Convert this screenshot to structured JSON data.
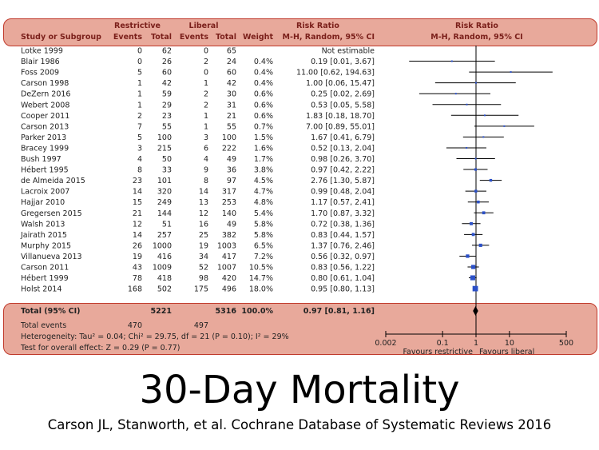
{
  "header": {
    "group1": "Restrictive",
    "group2": "Liberal",
    "rr_title": "Risk Ratio",
    "plot_title": "Risk Ratio",
    "study_col": "Study or Subgroup",
    "events1": "Events",
    "total1": "Total",
    "events2": "Events",
    "total2": "Total",
    "weight": "Weight",
    "rr_method": "M-H, Random, 95% CI",
    "plot_method": "M-H, Random, 95% CI"
  },
  "chart_data": {
    "type": "forest",
    "xscale": "log",
    "xlim": [
      0.002,
      500
    ],
    "ticks": [
      "0.002",
      "0.1",
      "1",
      "10",
      "500"
    ],
    "left_label": "Favours restrictive",
    "right_label": "Favours liberal",
    "studies": [
      {
        "name": "Lotke 1999",
        "e1": "0",
        "t1": "62",
        "e2": "0",
        "t2": "65",
        "weight": "",
        "rr_text": "Not estimable",
        "rr": null,
        "lo": null,
        "hi": null
      },
      {
        "name": "Blair 1986",
        "e1": "0",
        "t1": "26",
        "e2": "2",
        "t2": "24",
        "weight": "0.4%",
        "rr_text": "0.19 [0.01, 3.67]",
        "rr": 0.19,
        "lo": 0.01,
        "hi": 3.67
      },
      {
        "name": "Foss 2009",
        "e1": "5",
        "t1": "60",
        "e2": "0",
        "t2": "60",
        "weight": "0.4%",
        "rr_text": "11.00 [0.62, 194.63]",
        "rr": 11.0,
        "lo": 0.62,
        "hi": 194.63
      },
      {
        "name": "Carson 1998",
        "e1": "1",
        "t1": "42",
        "e2": "1",
        "t2": "42",
        "weight": "0.4%",
        "rr_text": "1.00 [0.06, 15.47]",
        "rr": 1.0,
        "lo": 0.06,
        "hi": 15.47
      },
      {
        "name": "DeZern 2016",
        "e1": "1",
        "t1": "59",
        "e2": "2",
        "t2": "30",
        "weight": "0.6%",
        "rr_text": "0.25 [0.02, 2.69]",
        "rr": 0.25,
        "lo": 0.02,
        "hi": 2.69
      },
      {
        "name": "Webert 2008",
        "e1": "1",
        "t1": "29",
        "e2": "2",
        "t2": "31",
        "weight": "0.6%",
        "rr_text": "0.53 [0.05, 5.58]",
        "rr": 0.53,
        "lo": 0.05,
        "hi": 5.58
      },
      {
        "name": "Cooper  2011",
        "e1": "2",
        "t1": "23",
        "e2": "1",
        "t2": "21",
        "weight": "0.6%",
        "rr_text": "1.83 [0.18, 18.70]",
        "rr": 1.83,
        "lo": 0.18,
        "hi": 18.7
      },
      {
        "name": "Carson 2013",
        "e1": "7",
        "t1": "55",
        "e2": "1",
        "t2": "55",
        "weight": "0.7%",
        "rr_text": "7.00 [0.89, 55.01]",
        "rr": 7.0,
        "lo": 0.89,
        "hi": 55.01
      },
      {
        "name": "Parker 2013",
        "e1": "5",
        "t1": "100",
        "e2": "3",
        "t2": "100",
        "weight": "1.5%",
        "rr_text": "1.67 [0.41, 6.79]",
        "rr": 1.67,
        "lo": 0.41,
        "hi": 6.79
      },
      {
        "name": "Bracey 1999",
        "e1": "3",
        "t1": "215",
        "e2": "6",
        "t2": "222",
        "weight": "1.6%",
        "rr_text": "0.52 [0.13, 2.04]",
        "rr": 0.52,
        "lo": 0.13,
        "hi": 2.04
      },
      {
        "name": "Bush 1997",
        "e1": "4",
        "t1": "50",
        "e2": "4",
        "t2": "49",
        "weight": "1.7%",
        "rr_text": "0.98 [0.26, 3.70]",
        "rr": 0.98,
        "lo": 0.26,
        "hi": 3.7
      },
      {
        "name": "Hébert 1995",
        "e1": "8",
        "t1": "33",
        "e2": "9",
        "t2": "36",
        "weight": "3.8%",
        "rr_text": "0.97 [0.42, 2.22]",
        "rr": 0.97,
        "lo": 0.42,
        "hi": 2.22
      },
      {
        "name": "de Almeida 2015",
        "e1": "23",
        "t1": "101",
        "e2": "8",
        "t2": "97",
        "weight": "4.5%",
        "rr_text": "2.76 [1.30, 5.87]",
        "rr": 2.76,
        "lo": 1.3,
        "hi": 5.87
      },
      {
        "name": "Lacroix 2007",
        "e1": "14",
        "t1": "320",
        "e2": "14",
        "t2": "317",
        "weight": "4.7%",
        "rr_text": "0.99 [0.48, 2.04]",
        "rr": 0.99,
        "lo": 0.48,
        "hi": 2.04
      },
      {
        "name": "Hajjar 2010",
        "e1": "15",
        "t1": "249",
        "e2": "13",
        "t2": "253",
        "weight": "4.8%",
        "rr_text": "1.17 [0.57, 2.41]",
        "rr": 1.17,
        "lo": 0.57,
        "hi": 2.41
      },
      {
        "name": "Gregersen 2015",
        "e1": "21",
        "t1": "144",
        "e2": "12",
        "t2": "140",
        "weight": "5.4%",
        "rr_text": "1.70 [0.87, 3.32]",
        "rr": 1.7,
        "lo": 0.87,
        "hi": 3.32
      },
      {
        "name": "Walsh 2013",
        "e1": "12",
        "t1": "51",
        "e2": "16",
        "t2": "49",
        "weight": "5.8%",
        "rr_text": "0.72 [0.38, 1.36]",
        "rr": 0.72,
        "lo": 0.38,
        "hi": 1.36
      },
      {
        "name": "Jairath 2015",
        "e1": "14",
        "t1": "257",
        "e2": "25",
        "t2": "382",
        "weight": "5.8%",
        "rr_text": "0.83 [0.44, 1.57]",
        "rr": 0.83,
        "lo": 0.44,
        "hi": 1.57
      },
      {
        "name": "Murphy 2015",
        "e1": "26",
        "t1": "1000",
        "e2": "19",
        "t2": "1003",
        "weight": "6.5%",
        "rr_text": "1.37 [0.76, 2.46]",
        "rr": 1.37,
        "lo": 0.76,
        "hi": 2.46
      },
      {
        "name": "Villanueva 2013",
        "e1": "19",
        "t1": "416",
        "e2": "34",
        "t2": "417",
        "weight": "7.2%",
        "rr_text": "0.56 [0.32, 0.97]",
        "rr": 0.56,
        "lo": 0.32,
        "hi": 0.97
      },
      {
        "name": "Carson 2011",
        "e1": "43",
        "t1": "1009",
        "e2": "52",
        "t2": "1007",
        "weight": "10.5%",
        "rr_text": "0.83 [0.56, 1.22]",
        "rr": 0.83,
        "lo": 0.56,
        "hi": 1.22
      },
      {
        "name": "Hébert 1999",
        "e1": "78",
        "t1": "418",
        "e2": "98",
        "t2": "420",
        "weight": "14.7%",
        "rr_text": "0.80 [0.61, 1.04]",
        "rr": 0.8,
        "lo": 0.61,
        "hi": 1.04
      },
      {
        "name": "Holst 2014",
        "e1": "168",
        "t1": "502",
        "e2": "175",
        "t2": "496",
        "weight": "18.0%",
        "rr_text": "0.95 [0.80, 1.13]",
        "rr": 0.95,
        "lo": 0.8,
        "hi": 1.13
      }
    ],
    "total": {
      "label": "Total (95% CI)",
      "t1": "5221",
      "t2": "5316",
      "weight": "100.0%",
      "rr_text": "0.97 [0.81, 1.16]",
      "rr": 0.97,
      "lo": 0.81,
      "hi": 1.16,
      "events_label": "Total events",
      "events1": "470",
      "events2": "497",
      "heterogeneity": "Heterogeneity: Tau² = 0.04; Chi² = 29.75, df = 21 (P = 0.10); I² = 29%",
      "overall": "Test for overall effect: Z = 0.29 (P = 0.77)"
    },
    "colors": {
      "point": "#2b50c8",
      "line": "#000000",
      "band": "#e8a99b"
    }
  },
  "slide": {
    "title": "30-Day Mortality",
    "citation": "Carson JL, Stanworth, et al.  Cochrane Database of Systematic Reviews 2016"
  }
}
